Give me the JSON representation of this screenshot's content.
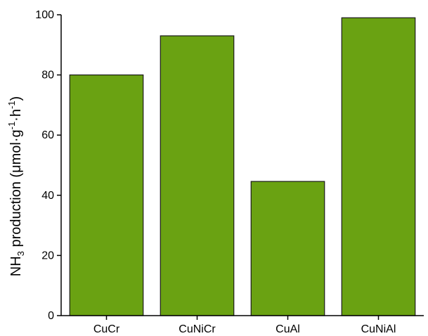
{
  "chart_data": {
    "type": "bar",
    "categories": [
      "CuCr",
      "CuNiCr",
      "CuAl",
      "CuNiAl"
    ],
    "values": [
      80,
      93,
      44.6,
      99
    ],
    "title": "",
    "xlabel": "",
    "ylabel": {
      "prefix": "NH",
      "sub": "3",
      "main": " production (",
      "mu": "μ",
      "unit": "mol·g",
      "sup1": "-1",
      "dot": "·h",
      "sup2": "-1",
      "close": ")"
    },
    "ylim": [
      0,
      100
    ],
    "yticks": [
      "0",
      "20",
      "40",
      "60",
      "80",
      "100"
    ],
    "grid": false,
    "legend": "none",
    "colors": {
      "bar_fill": "#6aa212",
      "bar_stroke": "#1a1a1a",
      "axis": "#000000"
    }
  }
}
